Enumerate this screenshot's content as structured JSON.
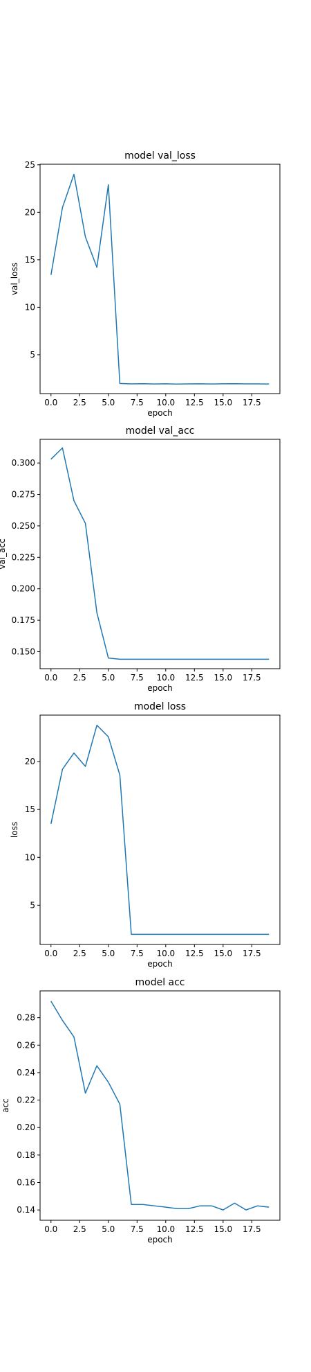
{
  "line_color": "#1f77b4",
  "chart_data": [
    {
      "type": "line",
      "title": "model val_loss",
      "xlabel": "epoch",
      "ylabel": "val_loss",
      "xlim": [
        -0.95,
        19.95
      ],
      "ylim": [
        0.91,
        25.06
      ],
      "x_ticks": [
        0.0,
        2.5,
        5.0,
        7.5,
        10.0,
        12.5,
        15.0,
        17.5
      ],
      "x_tick_labels": [
        "0.0",
        "2.5",
        "5.0",
        "7.5",
        "10.0",
        "12.5",
        "15.0",
        "17.5"
      ],
      "y_ticks": [
        5,
        10,
        15,
        20,
        25
      ],
      "y_tick_labels": [
        "5",
        "10",
        "15",
        "20",
        "25"
      ],
      "grid": false,
      "x": [
        0,
        1,
        2,
        3,
        4,
        5,
        6,
        7,
        8,
        9,
        10,
        11,
        12,
        13,
        14,
        15,
        16,
        17,
        18,
        19
      ],
      "values": [
        13.4,
        20.5,
        24.0,
        17.4,
        14.2,
        22.9,
        1.98,
        1.93,
        1.95,
        1.92,
        1.94,
        1.91,
        1.93,
        1.94,
        1.92,
        1.94,
        1.95,
        1.93,
        1.93,
        1.92
      ]
    },
    {
      "type": "line",
      "title": "model val_acc",
      "xlabel": "epoch",
      "ylabel": "val_acc",
      "xlim": [
        -0.95,
        19.95
      ],
      "ylim": [
        0.1365,
        0.3188
      ],
      "x_ticks": [
        0.0,
        2.5,
        5.0,
        7.5,
        10.0,
        12.5,
        15.0,
        17.5
      ],
      "x_tick_labels": [
        "0.0",
        "2.5",
        "5.0",
        "7.5",
        "10.0",
        "12.5",
        "15.0",
        "17.5"
      ],
      "y_ticks": [
        0.15,
        0.175,
        0.2,
        0.225,
        0.25,
        0.275,
        0.3
      ],
      "y_tick_labels": [
        "0.150",
        "0.175",
        "0.200",
        "0.225",
        "0.250",
        "0.275",
        "0.300"
      ],
      "grid": false,
      "x": [
        0,
        1,
        2,
        3,
        4,
        5,
        6,
        7,
        8,
        9,
        10,
        11,
        12,
        13,
        14,
        15,
        16,
        17,
        18,
        19
      ],
      "values": [
        0.303,
        0.312,
        0.27,
        0.252,
        0.181,
        0.145,
        0.144,
        0.144,
        0.144,
        0.144,
        0.144,
        0.144,
        0.144,
        0.144,
        0.144,
        0.144,
        0.144,
        0.144,
        0.144,
        0.144
      ]
    },
    {
      "type": "line",
      "title": "model loss",
      "xlabel": "epoch",
      "ylabel": "loss",
      "xlim": [
        -0.95,
        19.95
      ],
      "ylim": [
        0.9,
        24.86
      ],
      "x_ticks": [
        0.0,
        2.5,
        5.0,
        7.5,
        10.0,
        12.5,
        15.0,
        17.5
      ],
      "x_tick_labels": [
        "0.0",
        "2.5",
        "5.0",
        "7.5",
        "10.0",
        "12.5",
        "15.0",
        "17.5"
      ],
      "y_ticks": [
        5,
        10,
        15,
        20
      ],
      "y_tick_labels": [
        "5",
        "10",
        "15",
        "20"
      ],
      "grid": false,
      "x": [
        0,
        1,
        2,
        3,
        4,
        5,
        6,
        7,
        8,
        9,
        10,
        11,
        12,
        13,
        14,
        15,
        16,
        17,
        18,
        19
      ],
      "values": [
        13.5,
        19.2,
        20.9,
        19.5,
        23.8,
        22.6,
        18.6,
        1.96,
        1.96,
        1.96,
        1.96,
        1.96,
        1.96,
        1.96,
        1.96,
        1.96,
        1.96,
        1.96,
        1.96,
        1.96
      ]
    },
    {
      "type": "line",
      "title": "model acc",
      "xlabel": "epoch",
      "ylabel": "acc",
      "xlim": [
        -0.95,
        19.95
      ],
      "ylim": [
        0.1325,
        0.2995
      ],
      "x_ticks": [
        0.0,
        2.5,
        5.0,
        7.5,
        10.0,
        12.5,
        15.0,
        17.5
      ],
      "x_tick_labels": [
        "0.0",
        "2.5",
        "5.0",
        "7.5",
        "10.0",
        "12.5",
        "15.0",
        "17.5"
      ],
      "y_ticks": [
        0.14,
        0.16,
        0.18,
        0.2,
        0.22,
        0.24,
        0.26,
        0.28
      ],
      "y_tick_labels": [
        "0.14",
        "0.16",
        "0.18",
        "0.20",
        "0.22",
        "0.24",
        "0.26",
        "0.28"
      ],
      "grid": false,
      "x": [
        0,
        1,
        2,
        3,
        4,
        5,
        6,
        7,
        8,
        9,
        10,
        11,
        12,
        13,
        14,
        15,
        16,
        17,
        18,
        19
      ],
      "values": [
        0.292,
        0.278,
        0.266,
        0.225,
        0.245,
        0.233,
        0.217,
        0.144,
        0.144,
        0.143,
        0.142,
        0.141,
        0.141,
        0.143,
        0.143,
        0.14,
        0.145,
        0.14,
        0.143,
        0.142
      ]
    }
  ]
}
